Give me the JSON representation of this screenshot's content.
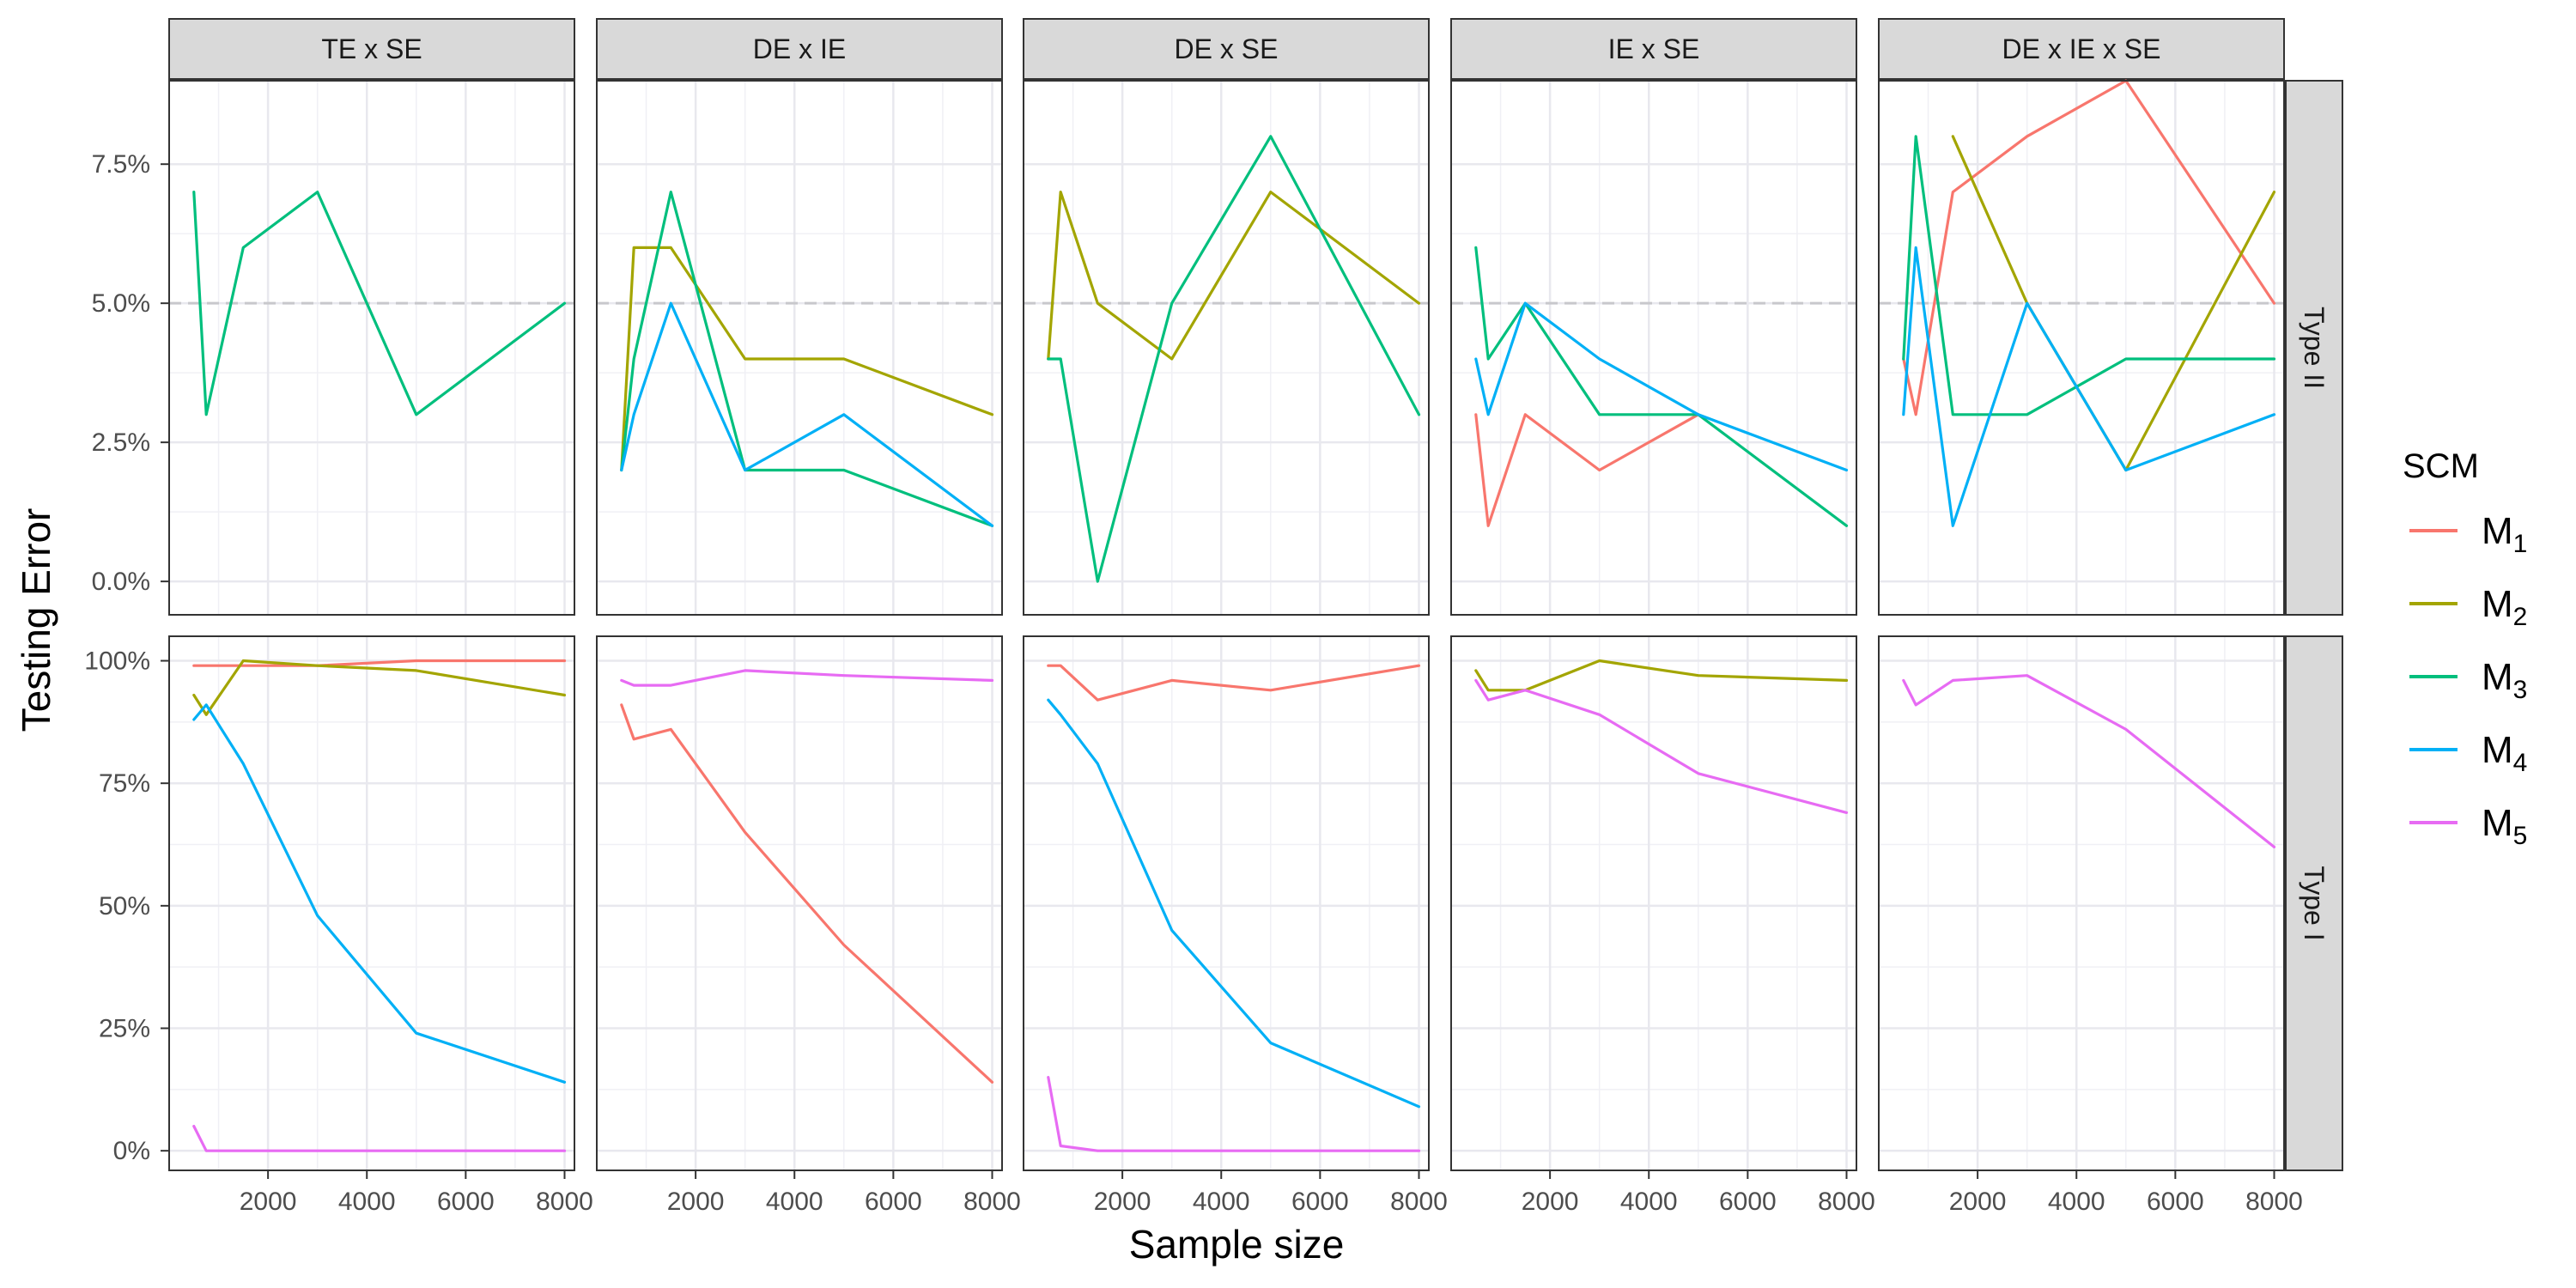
{
  "chart_data": {
    "type": "line",
    "xlabel": "Sample size",
    "ylabel": "Testing Error",
    "x": [
      500,
      750,
      1500,
      3000,
      5000,
      8000
    ],
    "xlim": [
      0,
      8200
    ],
    "x_ticks": [
      2000,
      4000,
      6000,
      8000
    ],
    "columns": [
      "TE x SE",
      "DE x IE",
      "DE x SE",
      "IE x SE",
      "DE x IE x SE"
    ],
    "rows": [
      {
        "label": "Type II",
        "ylim": [
          -0.6,
          9.0
        ],
        "y_ticks": [
          0,
          2.5,
          5.0,
          7.5
        ],
        "y_tick_labels": [
          "0.0%",
          "2.5%",
          "5.0%",
          "7.5%"
        ],
        "reference_line": 5.0
      },
      {
        "label": "Type I",
        "ylim": [
          -4,
          105
        ],
        "y_ticks": [
          0,
          25,
          50,
          75,
          100
        ],
        "y_tick_labels": [
          "0%",
          "25%",
          "50%",
          "75%",
          "100%"
        ]
      }
    ],
    "legend": {
      "title": "SCM",
      "entries": [
        {
          "key": "M1",
          "base": "M",
          "sub": "1",
          "color": "#F8766D"
        },
        {
          "key": "M2",
          "base": "M",
          "sub": "2",
          "color": "#A3A500"
        },
        {
          "key": "M3",
          "base": "M",
          "sub": "3",
          "color": "#00BF7D"
        },
        {
          "key": "M4",
          "base": "M",
          "sub": "4",
          "color": "#00B0F6"
        },
        {
          "key": "M5",
          "base": "M",
          "sub": "5",
          "color": "#E76BF3"
        }
      ]
    },
    "series": [
      {
        "row": 0,
        "col": 0,
        "scm": "M3",
        "values": [
          7,
          3,
          6,
          7,
          3,
          5
        ]
      },
      {
        "row": 0,
        "col": 1,
        "scm": "M2",
        "values": [
          2,
          6,
          6,
          4,
          4,
          3
        ]
      },
      {
        "row": 0,
        "col": 1,
        "scm": "M3",
        "values": [
          2,
          4,
          7,
          2,
          2,
          1
        ]
      },
      {
        "row": 0,
        "col": 1,
        "scm": "M4",
        "values": [
          2,
          3,
          5,
          2,
          3,
          1
        ]
      },
      {
        "row": 0,
        "col": 2,
        "scm": "M2",
        "values": [
          4,
          7,
          5,
          4,
          7,
          5
        ]
      },
      {
        "row": 0,
        "col": 2,
        "scm": "M3",
        "values": [
          4,
          4,
          0,
          5,
          8,
          3
        ]
      },
      {
        "row": 0,
        "col": 3,
        "scm": "M1",
        "values": [
          3,
          1,
          3,
          2,
          3,
          null
        ]
      },
      {
        "row": 0,
        "col": 3,
        "scm": "M3",
        "values": [
          6,
          4,
          5,
          3,
          3,
          1
        ]
      },
      {
        "row": 0,
        "col": 3,
        "scm": "M4",
        "values": [
          4,
          3,
          5,
          4,
          3,
          2
        ]
      },
      {
        "row": 0,
        "col": 4,
        "scm": "M1",
        "values": [
          4,
          3,
          7,
          8,
          9,
          5
        ]
      },
      {
        "row": 0,
        "col": 4,
        "scm": "M2",
        "values": [
          null,
          null,
          8,
          5,
          2,
          7
        ]
      },
      {
        "row": 0,
        "col": 4,
        "scm": "M3",
        "values": [
          4,
          8,
          3,
          3,
          4,
          4
        ]
      },
      {
        "row": 0,
        "col": 4,
        "scm": "M4",
        "values": [
          3,
          6,
          1,
          5,
          2,
          3
        ]
      },
      {
        "row": 1,
        "col": 0,
        "scm": "M1",
        "values": [
          99,
          99,
          99,
          99,
          100,
          100
        ]
      },
      {
        "row": 1,
        "col": 0,
        "scm": "M2",
        "values": [
          93,
          89,
          100,
          99,
          98,
          93
        ]
      },
      {
        "row": 1,
        "col": 0,
        "scm": "M4",
        "values": [
          88,
          91,
          79,
          48,
          24,
          14
        ]
      },
      {
        "row": 1,
        "col": 0,
        "scm": "M5",
        "values": [
          5,
          0,
          0,
          0,
          0,
          0
        ]
      },
      {
        "row": 1,
        "col": 1,
        "scm": "M1",
        "values": [
          91,
          84,
          86,
          65,
          42,
          14
        ]
      },
      {
        "row": 1,
        "col": 1,
        "scm": "M5",
        "values": [
          96,
          95,
          95,
          98,
          97,
          96
        ]
      },
      {
        "row": 1,
        "col": 2,
        "scm": "M1",
        "values": [
          99,
          99,
          92,
          96,
          94,
          99
        ]
      },
      {
        "row": 1,
        "col": 2,
        "scm": "M4",
        "values": [
          92,
          89,
          79,
          45,
          22,
          9
        ]
      },
      {
        "row": 1,
        "col": 2,
        "scm": "M5",
        "values": [
          15,
          1,
          0,
          0,
          0,
          0
        ]
      },
      {
        "row": 1,
        "col": 3,
        "scm": "M2",
        "values": [
          98,
          94,
          94,
          100,
          97,
          96
        ]
      },
      {
        "row": 1,
        "col": 3,
        "scm": "M5",
        "values": [
          96,
          92,
          94,
          89,
          77,
          69
        ]
      },
      {
        "row": 1,
        "col": 4,
        "scm": "M5",
        "values": [
          96,
          91,
          96,
          97,
          86,
          62
        ]
      }
    ]
  }
}
